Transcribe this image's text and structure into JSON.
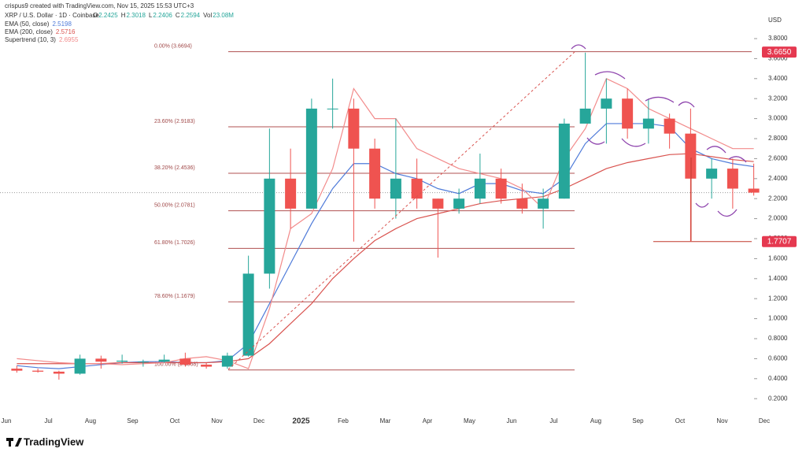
{
  "chart_data": {
    "type": "candlestick",
    "credit": "crispus9 created with TradingView.com, Nov 15, 2025 15:53 UTC+3",
    "symbol": "XRP / U.S. Dollar · 1D · Coinbase",
    "quote": [
      {
        "key": "O",
        "value": 2.2425
      },
      {
        "key": "H",
        "value": 2.3018
      },
      {
        "key": "L",
        "value": 2.2406
      },
      {
        "key": "C",
        "value": 2.2594
      },
      {
        "key": "Vol",
        "value": "23.08M"
      }
    ],
    "y_unit": "USD",
    "brand": "TradingView",
    "categories": [
      "Jun",
      null,
      "Jul",
      null,
      "Aug",
      null,
      "Sep",
      null,
      "Oct",
      null,
      "Nov",
      null,
      "Dec",
      null,
      "2025",
      null,
      "Feb",
      null,
      "Mar",
      null,
      "Apr",
      null,
      "May",
      null,
      "Jun",
      null,
      "Jul",
      null,
      "Aug",
      null,
      "Sep",
      null,
      "Oct",
      null,
      "Nov",
      null,
      "Dec"
    ],
    "ohlc": {
      "up_color": "#26a69a",
      "down_color": "#ef5350",
      "open": [
        0.5,
        0.48,
        0.47,
        0.45,
        0.6,
        0.57,
        0.57,
        0.57,
        0.6,
        0.54,
        0.52,
        0.63,
        1.45,
        2.4,
        2.1,
        3.1,
        3.1,
        2.7,
        2.2,
        2.4,
        2.2,
        2.1,
        2.2,
        2.4,
        2.2,
        2.1,
        2.2,
        2.95,
        3.1,
        3.2,
        2.9,
        3.0,
        2.85,
        2.4,
        2.5,
        2.3,
        null
      ],
      "high": [
        0.53,
        0.5,
        0.48,
        0.64,
        0.63,
        0.64,
        0.59,
        0.64,
        0.66,
        0.56,
        0.66,
        1.63,
        2.9,
        2.7,
        3.2,
        3.4,
        3.2,
        2.8,
        3.0,
        2.6,
        2.2,
        2.3,
        2.65,
        2.5,
        2.35,
        2.3,
        3.0,
        3.66,
        3.4,
        3.3,
        3.2,
        3.05,
        3.1,
        2.6,
        2.6,
        2.55,
        null
      ],
      "low": [
        0.46,
        0.46,
        0.39,
        0.44,
        0.5,
        0.55,
        0.52,
        0.56,
        0.52,
        0.5,
        0.5,
        0.62,
        1.3,
        1.9,
        2.1,
        2.9,
        1.77,
        2.1,
        2.0,
        2.1,
        1.61,
        2.05,
        2.15,
        2.15,
        2.05,
        1.9,
        2.2,
        2.95,
        2.75,
        2.8,
        2.75,
        2.7,
        1.77,
        2.2,
        2.1,
        2.23,
        null
      ],
      "close": [
        0.48,
        0.47,
        0.45,
        0.6,
        0.57,
        0.58,
        0.57,
        0.59,
        0.54,
        0.52,
        0.63,
        1.45,
        2.4,
        2.1,
        3.1,
        3.1,
        2.7,
        2.2,
        2.4,
        2.2,
        2.1,
        2.2,
        2.4,
        2.2,
        2.1,
        2.2,
        2.95,
        3.1,
        3.2,
        2.9,
        3.0,
        2.85,
        2.4,
        2.5,
        2.3,
        2.26,
        null
      ]
    },
    "series": [
      {
        "name": "EMA (50, close)",
        "color": "#4f7bd9",
        "last": 2.5198,
        "values": [
          0.53,
          0.51,
          0.5,
          0.52,
          0.54,
          0.56,
          0.57,
          0.57,
          0.56,
          0.56,
          0.58,
          0.75,
          1.15,
          1.55,
          1.95,
          2.3,
          2.55,
          2.55,
          2.45,
          2.4,
          2.3,
          2.25,
          2.35,
          2.35,
          2.28,
          2.25,
          2.4,
          2.75,
          2.95,
          2.95,
          2.95,
          2.92,
          2.7,
          2.6,
          2.55,
          2.52,
          null
        ]
      },
      {
        "name": "EMA (200, close)",
        "color": "#d9534f",
        "last": 2.5716,
        "values": [
          0.55,
          0.55,
          0.55,
          0.55,
          0.55,
          0.56,
          0.56,
          0.56,
          0.56,
          0.56,
          0.57,
          0.6,
          0.75,
          0.95,
          1.15,
          1.4,
          1.6,
          1.78,
          1.9,
          2.0,
          2.05,
          2.1,
          2.15,
          2.18,
          2.2,
          2.22,
          2.3,
          2.4,
          2.5,
          2.56,
          2.6,
          2.64,
          2.65,
          2.62,
          2.59,
          2.57,
          null
        ]
      },
      {
        "name": "Supertrend (10, 3)",
        "color": "#f28b8b",
        "last": 2.6955,
        "values": [
          0.6,
          0.58,
          0.56,
          0.55,
          0.55,
          0.54,
          0.55,
          0.56,
          0.6,
          0.62,
          0.58,
          0.5,
          1.1,
          1.9,
          2.05,
          2.5,
          3.3,
          3.0,
          3.0,
          2.7,
          2.6,
          2.5,
          2.45,
          2.4,
          2.3,
          2.1,
          2.6,
          2.9,
          3.4,
          3.3,
          3.1,
          3.0,
          2.9,
          2.8,
          2.7,
          2.7,
          null
        ]
      }
    ],
    "fib_levels": [
      {
        "label": "0.00% (3.6694)",
        "value": 3.6694
      },
      {
        "label": "23.60% (2.9183)",
        "value": 2.9183
      },
      {
        "label": "38.20% (2.4536)",
        "value": 2.4536
      },
      {
        "label": "50.00% (2.0781)",
        "value": 2.0781
      },
      {
        "label": "61.80% (1.7026)",
        "value": 1.7026
      },
      {
        "label": "78.60% (1.1679)",
        "value": 1.1679
      },
      {
        "label": "100.00% (0.4868)",
        "value": 0.4868
      }
    ],
    "price_labels": [
      {
        "value": 3.665,
        "label": "3.6650"
      },
      {
        "value": 1.7707,
        "label": "1.7707"
      }
    ],
    "ylim": [
      0,
      4
    ],
    "yticks": [
      {
        "value": 0.2,
        "label": "0.2000"
      },
      {
        "value": 0.4,
        "label": "0.4000"
      },
      {
        "value": 0.6,
        "label": "0.6000"
      },
      {
        "value": 0.8,
        "label": "0.8000"
      },
      {
        "value": 1.0,
        "label": "1.0000"
      },
      {
        "value": 1.2,
        "label": "1.2000"
      },
      {
        "value": 1.4,
        "label": "1.4000"
      },
      {
        "value": 1.6,
        "label": "1.6000"
      },
      {
        "value": 1.8,
        "label": "1.8000"
      },
      {
        "value": 2.0,
        "label": "2.0000"
      },
      {
        "value": 2.2,
        "label": "2.2000"
      },
      {
        "value": 2.4,
        "label": "2.4000"
      },
      {
        "value": 2.6,
        "label": "2.6000"
      },
      {
        "value": 2.8,
        "label": "2.8000"
      },
      {
        "value": 3.0,
        "label": "3.0000"
      },
      {
        "value": 3.2,
        "label": "3.2000"
      },
      {
        "value": 3.4,
        "label": "3.4000"
      },
      {
        "value": 3.6,
        "label": "3.6000"
      },
      {
        "value": 3.8,
        "label": "3.8000"
      }
    ]
  }
}
